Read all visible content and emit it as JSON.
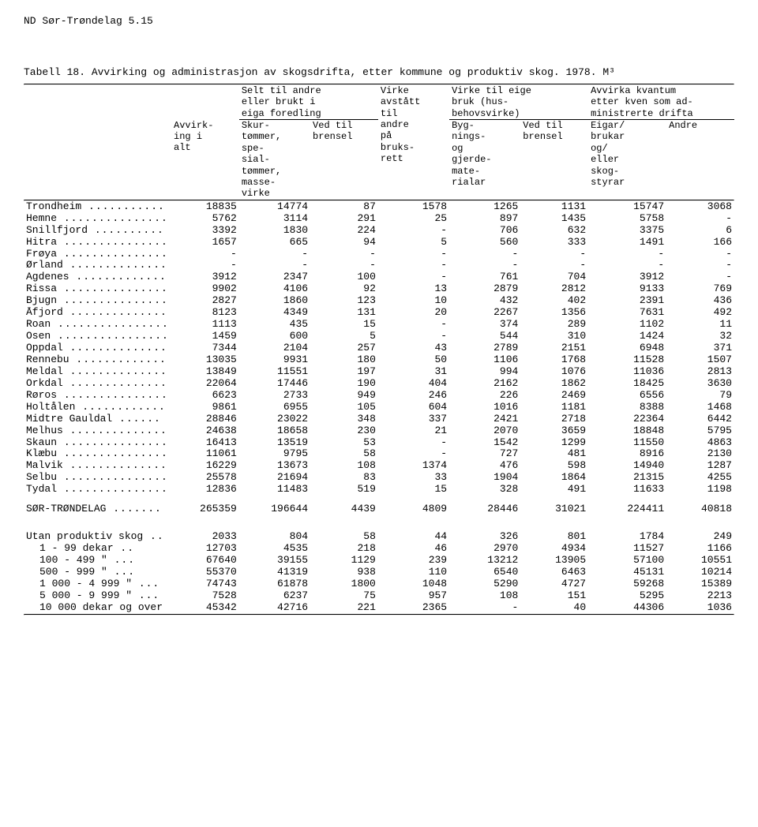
{
  "page_header": "ND Sør-Trøndelag 5.15",
  "title_line": "Tabell 18.  Avvirking og administrasjon av skogsdrifta, etter kommune og produktiv skog.  1978.  M³",
  "header": {
    "group1": "Selt til andre\neller brukt i\neiga foredling",
    "group2_top": "Virke til eige\nbruk (hus-\nbehovsvirke)",
    "group3_top": "Avvirka kvantum\netter kven som ad-\nministrerte drifta",
    "c1": "Avvirk-\ning i\nalt",
    "c2": "Skur-\ntømmer,\nspe-\nsial-\ntømmer,\nmasse-\nvirke",
    "c3": "Ved til\nbrensel",
    "c4": "Virke\navstått\ntil\nandre\npå\nbruks-\nrett",
    "c5": "Byg-\nnings-\nog\ngjerde-\nmate-\nrialar",
    "c6": "Ved til\nbrensel",
    "c7": "Eigar/\nbrukar\nog/\neller\nskog-\nstyrar",
    "c8": "Andre"
  },
  "rows": [
    {
      "label": "Trondheim",
      "v": [
        "18835",
        "14774",
        "87",
        "1578",
        "1265",
        "1131",
        "15747",
        "3068"
      ]
    },
    {
      "label": "Hemne",
      "v": [
        "5762",
        "3114",
        "291",
        "25",
        "897",
        "1435",
        "5758",
        "-"
      ]
    },
    {
      "label": "Snillfjord",
      "v": [
        "3392",
        "1830",
        "224",
        "-",
        "706",
        "632",
        "3375",
        "6"
      ]
    },
    {
      "label": "Hitra",
      "v": [
        "1657",
        "665",
        "94",
        "5",
        "560",
        "333",
        "1491",
        "166"
      ]
    },
    {
      "label": "Frøya",
      "v": [
        "-",
        "-",
        "-",
        "-",
        "-",
        "-",
        "-",
        "-"
      ]
    },
    {
      "label": "Ørland",
      "v": [
        "-",
        "-",
        "-",
        "-",
        "-",
        "-",
        "-",
        "-"
      ]
    },
    {
      "label": "Agdenes",
      "v": [
        "3912",
        "2347",
        "100",
        "-",
        "761",
        "704",
        "3912",
        "-"
      ]
    },
    {
      "label": "Rissa",
      "v": [
        "9902",
        "4106",
        "92",
        "13",
        "2879",
        "2812",
        "9133",
        "769"
      ]
    },
    {
      "label": "Bjugn",
      "v": [
        "2827",
        "1860",
        "123",
        "10",
        "432",
        "402",
        "2391",
        "436"
      ]
    },
    {
      "label": "Åfjord",
      "v": [
        "8123",
        "4349",
        "131",
        "20",
        "2267",
        "1356",
        "7631",
        "492"
      ]
    },
    {
      "label": "Roan",
      "v": [
        "1113",
        "435",
        "15",
        "-",
        "374",
        "289",
        "1102",
        "11"
      ]
    },
    {
      "label": "Osen",
      "v": [
        "1459",
        "600",
        "5",
        "-",
        "544",
        "310",
        "1424",
        "32"
      ]
    },
    {
      "label": "Oppdal",
      "v": [
        "7344",
        "2104",
        "257",
        "43",
        "2789",
        "2151",
        "6948",
        "371"
      ]
    },
    {
      "label": "Rennebu",
      "v": [
        "13035",
        "9931",
        "180",
        "50",
        "1106",
        "1768",
        "11528",
        "1507"
      ]
    },
    {
      "label": "Meldal",
      "v": [
        "13849",
        "11551",
        "197",
        "31",
        "994",
        "1076",
        "11036",
        "2813"
      ]
    },
    {
      "label": "Orkdal",
      "v": [
        "22064",
        "17446",
        "190",
        "404",
        "2162",
        "1862",
        "18425",
        "3630"
      ]
    },
    {
      "label": "Røros",
      "v": [
        "6623",
        "2733",
        "949",
        "246",
        "226",
        "2469",
        "6556",
        "79"
      ]
    },
    {
      "label": "Holtålen",
      "v": [
        "9861",
        "6955",
        "105",
        "604",
        "1016",
        "1181",
        "8388",
        "1468"
      ]
    },
    {
      "label": "Midtre Gauldal",
      "v": [
        "28846",
        "23022",
        "348",
        "337",
        "2421",
        "2718",
        "22364",
        "6442"
      ]
    },
    {
      "label": "Melhus",
      "v": [
        "24638",
        "18658",
        "230",
        "21",
        "2070",
        "3659",
        "18848",
        "5795"
      ]
    },
    {
      "label": "Skaun",
      "v": [
        "16413",
        "13519",
        "53",
        "-",
        "1542",
        "1299",
        "11550",
        "4863"
      ]
    },
    {
      "label": "Klæbu",
      "v": [
        "11061",
        "9795",
        "58",
        "-",
        "727",
        "481",
        "8916",
        "2130"
      ]
    },
    {
      "label": "Malvik",
      "v": [
        "16229",
        "13673",
        "108",
        "1374",
        "476",
        "598",
        "14940",
        "1287"
      ]
    },
    {
      "label": "Selbu",
      "v": [
        "25578",
        "21694",
        "83",
        "33",
        "1904",
        "1864",
        "21315",
        "4255"
      ]
    },
    {
      "label": "Tydal",
      "v": [
        "12836",
        "11483",
        "519",
        "15",
        "328",
        "491",
        "11633",
        "1198"
      ]
    }
  ],
  "total_row": {
    "label": "SØR-TRØNDELAG",
    "v": [
      "265359",
      "196644",
      "4439",
      "4809",
      "28446",
      "31021",
      "224411",
      "40818"
    ]
  },
  "footer_rows": [
    {
      "label": "Utan produktiv skog",
      "v": [
        "2033",
        "804",
        "58",
        "44",
        "326",
        "801",
        "1784",
        "249"
      ]
    },
    {
      "label": "    1 -    99 dekar",
      "v": [
        "12703",
        "4535",
        "218",
        "46",
        "2970",
        "4934",
        "11527",
        "1166"
      ]
    },
    {
      "label": "  100 -   499   \"",
      "v": [
        "67640",
        "39155",
        "1129",
        "239",
        "13212",
        "13905",
        "57100",
        "10551"
      ]
    },
    {
      "label": "  500 -   999   \"",
      "v": [
        "55370",
        "41319",
        "938",
        "110",
        "6540",
        "6463",
        "45131",
        "10214"
      ]
    },
    {
      "label": "1 000 - 4 999   \"",
      "v": [
        "74743",
        "61878",
        "1800",
        "1048",
        "5290",
        "4727",
        "59268",
        "15389"
      ]
    },
    {
      "label": "5 000 - 9 999   \"",
      "v": [
        "7528",
        "6237",
        "75",
        "957",
        "108",
        "151",
        "5295",
        "2213"
      ]
    },
    {
      "label": "10 000 dekar og over",
      "v": [
        "45342",
        "42716",
        "221",
        "2365",
        "-",
        "40",
        "44306",
        "1036"
      ]
    }
  ]
}
